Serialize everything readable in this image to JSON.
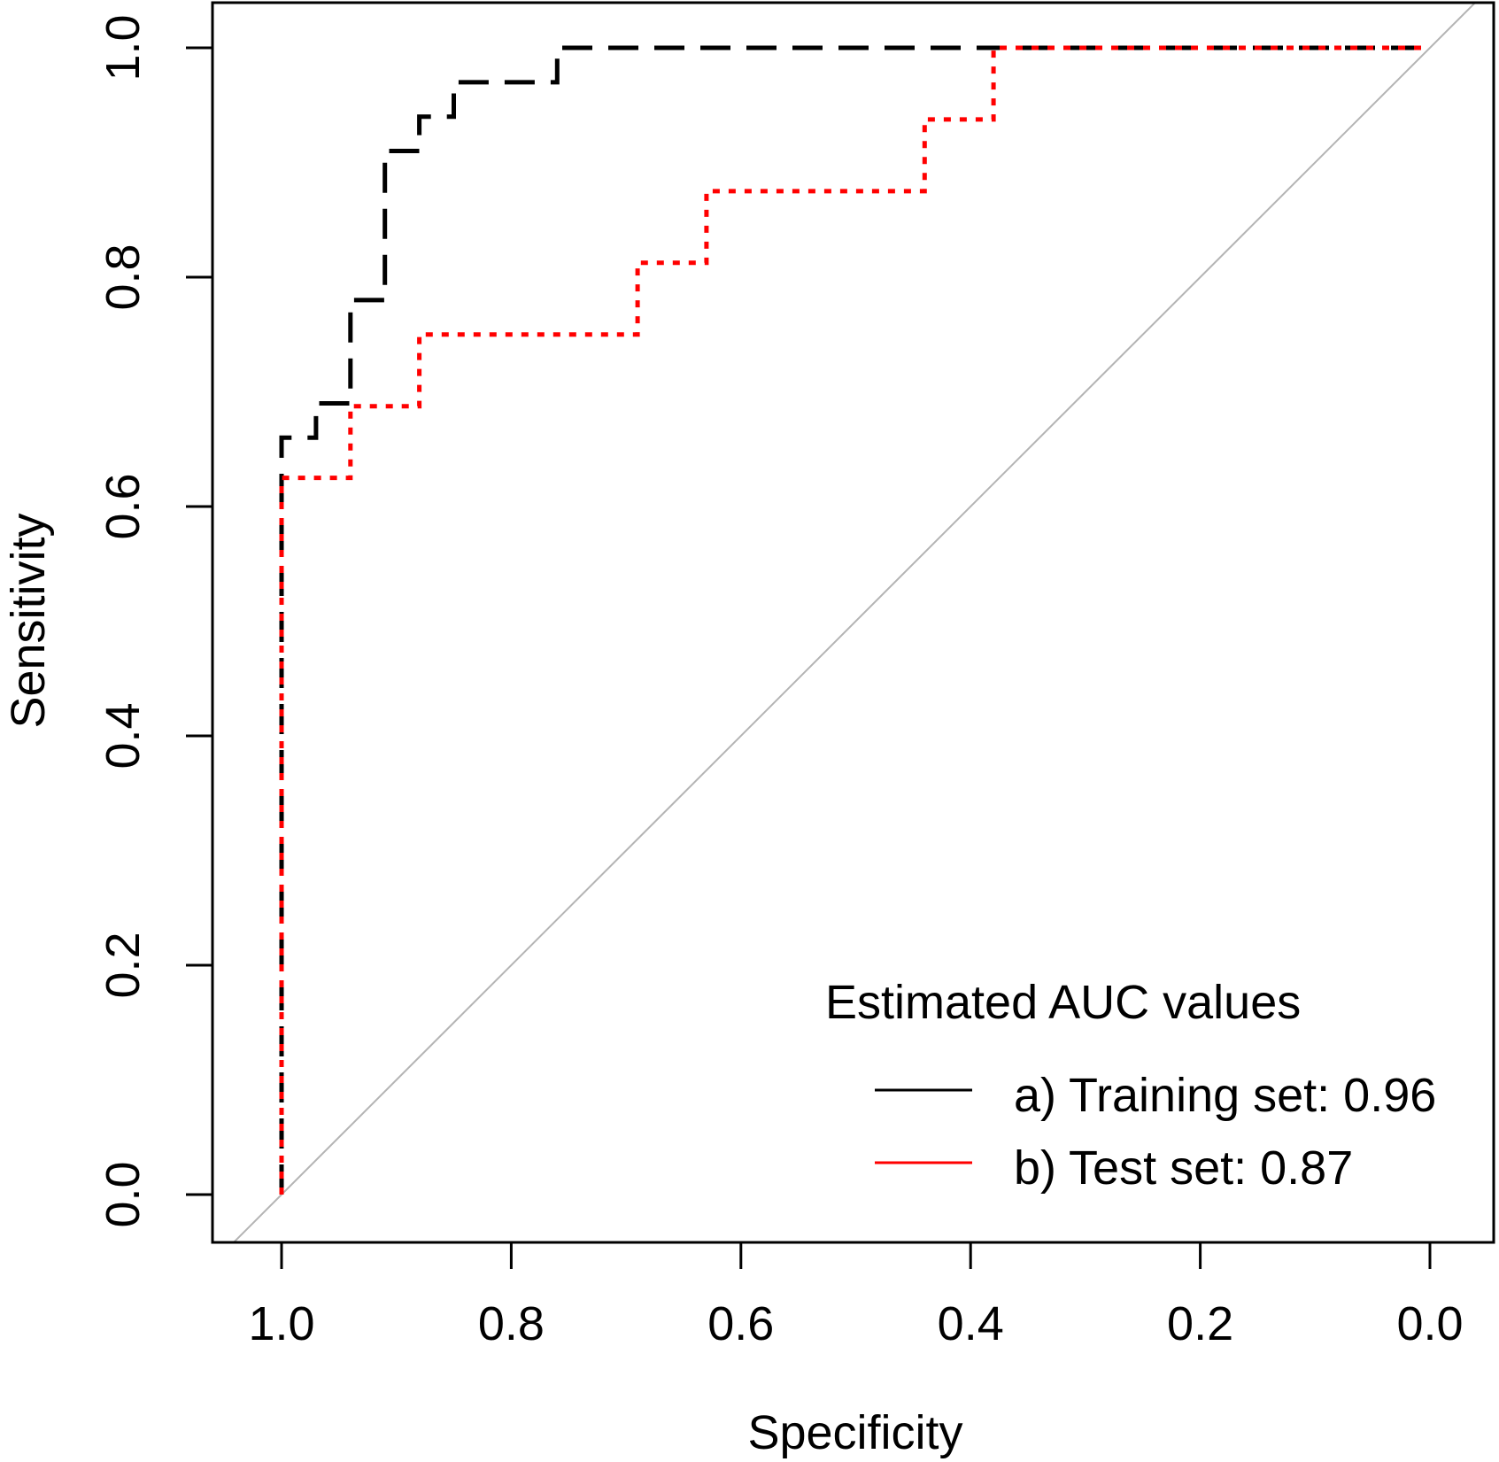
{
  "chart_data": {
    "type": "line",
    "title": "",
    "xlabel": "Specificity",
    "ylabel": "Sensitivity",
    "xlim": [
      1.0,
      0.0
    ],
    "ylim": [
      0.0,
      1.0
    ],
    "x_reversed": true,
    "x_ticks": [
      "1.0",
      "0.8",
      "0.6",
      "0.4",
      "0.2",
      "0.0"
    ],
    "y_ticks": [
      "0.0",
      "0.2",
      "0.4",
      "0.6",
      "0.8",
      "1.0"
    ],
    "reference_line": {
      "from": [
        1.0,
        0.0
      ],
      "to": [
        0.0,
        1.0
      ],
      "color": "#b4b4b4"
    },
    "series": [
      {
        "name": "a) Training set: 0.96",
        "color": "#000000",
        "style": "dashed",
        "specificity": [
          1.0,
          1.0,
          0.97,
          0.97,
          0.94,
          0.94,
          0.91,
          0.91,
          0.88,
          0.88,
          0.85,
          0.85,
          0.76,
          0.76,
          0.0
        ],
        "sensitivity": [
          0.0,
          0.66,
          0.66,
          0.69,
          0.69,
          0.78,
          0.78,
          0.91,
          0.91,
          0.94,
          0.94,
          0.97,
          0.97,
          1.0,
          1.0
        ]
      },
      {
        "name": "b) Test set: 0.87",
        "color": "#ff0000",
        "style": "dotted",
        "specificity": [
          1.0,
          1.0,
          0.94,
          0.94,
          0.88,
          0.88,
          0.69,
          0.69,
          0.63,
          0.63,
          0.44,
          0.44,
          0.38,
          0.38,
          0.0
        ],
        "sensitivity": [
          0.0,
          0.625,
          0.625,
          0.6875,
          0.6875,
          0.75,
          0.75,
          0.8125,
          0.8125,
          0.875,
          0.875,
          0.9375,
          0.9375,
          1.0,
          1.0
        ]
      }
    ],
    "legend": {
      "title": "Estimated AUC values",
      "position": "bottom-right",
      "entries": [
        "a) Training set: 0.96",
        "b) Test set: 0.87"
      ]
    }
  }
}
